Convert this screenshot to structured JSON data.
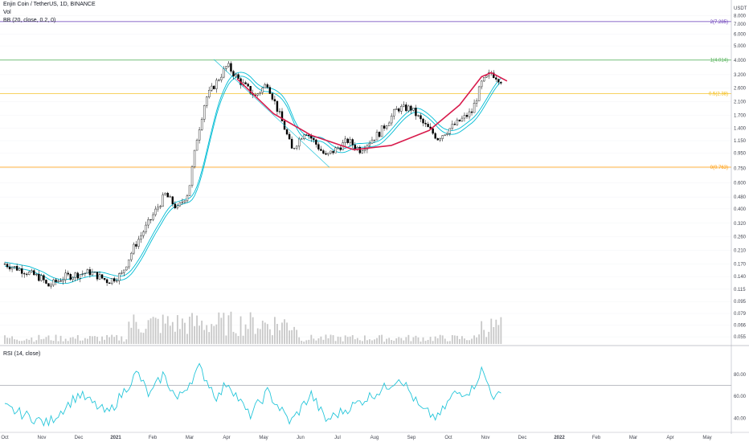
{
  "header": {
    "title": "Enjin Coin / TetherUS, 1D, BINANCE",
    "vol_label": "Vol",
    "bb_label": "BB (20, close, 0.2, 0)",
    "rsi_label": "RSI (14, close)"
  },
  "colors": {
    "candle": "#000000",
    "bb": "#00bcd4",
    "cup": "#d81b4c",
    "fib0": "#ff9800",
    "fib05": "#f2b705",
    "fib1": "#4caf50",
    "fib2": "#673ab7",
    "rsi": "#26c6da",
    "volume": "#c8c8c8",
    "grid": "#e0e3eb"
  },
  "chart_data": {
    "type": "candlestick",
    "price_axis": {
      "scale": "log",
      "unit": "USDT",
      "ticks": [
        "8.000",
        "7.000",
        "6.000",
        "5.000",
        "4.000",
        "3.200",
        "2.600",
        "2.100",
        "1.700",
        "1.400",
        "1.150",
        "0.950",
        "0.750",
        "0.600",
        "0.480",
        "0.400",
        "0.320",
        "0.260",
        "0.210",
        "0.170",
        "0.140",
        "0.115",
        "0.095",
        "0.079",
        "0.066",
        "0.055"
      ]
    },
    "time_axis": {
      "ticks": [
        "Oct",
        "Nov",
        "Dec",
        "2021",
        "Feb",
        "Mar",
        "Apr",
        "May",
        "Jun",
        "Jul",
        "Aug",
        "Sep",
        "Oct",
        "Nov",
        "Dec",
        "2022",
        "Feb",
        "Mar",
        "Apr",
        "May"
      ]
    },
    "fib_levels": [
      {
        "label": "2(7.285)",
        "value": 7.285
      },
      {
        "label": "1(4.014)",
        "value": 4.014
      },
      {
        "label": "0.5(2.38)",
        "value": 2.38
      },
      {
        "label": "0(0.763)",
        "value": 0.763
      }
    ],
    "price_points": [
      {
        "date": "2020-10-01",
        "close": 0.17
      },
      {
        "date": "2020-10-15",
        "close": 0.155
      },
      {
        "date": "2020-11-01",
        "close": 0.135
      },
      {
        "date": "2020-11-05",
        "close": 0.12
      },
      {
        "date": "2020-11-20",
        "close": 0.14
      },
      {
        "date": "2020-12-10",
        "close": 0.15
      },
      {
        "date": "2020-12-25",
        "close": 0.13
      },
      {
        "date": "2021-01-05",
        "close": 0.145
      },
      {
        "date": "2021-01-15",
        "close": 0.22
      },
      {
        "date": "2021-01-28",
        "close": 0.33
      },
      {
        "date": "2021-02-10",
        "close": 0.5
      },
      {
        "date": "2021-02-20",
        "close": 0.4
      },
      {
        "date": "2021-03-01",
        "close": 0.52
      },
      {
        "date": "2021-03-08",
        "close": 1.2
      },
      {
        "date": "2021-03-15",
        "close": 2.2
      },
      {
        "date": "2021-03-22",
        "close": 2.7
      },
      {
        "date": "2021-04-02",
        "close": 3.7
      },
      {
        "date": "2021-04-12",
        "close": 2.9
      },
      {
        "date": "2021-04-25",
        "close": 2.3
      },
      {
        "date": "2021-05-05",
        "close": 2.8
      },
      {
        "date": "2021-05-19",
        "close": 1.4
      },
      {
        "date": "2021-05-25",
        "close": 1.0
      },
      {
        "date": "2021-06-05",
        "close": 1.35
      },
      {
        "date": "2021-06-22",
        "close": 0.9
      },
      {
        "date": "2021-07-10",
        "close": 1.15
      },
      {
        "date": "2021-07-20",
        "close": 1.0
      },
      {
        "date": "2021-08-05",
        "close": 1.3
      },
      {
        "date": "2021-08-20",
        "close": 1.9
      },
      {
        "date": "2021-08-31",
        "close": 1.9
      },
      {
        "date": "2021-09-10",
        "close": 1.5
      },
      {
        "date": "2021-09-22",
        "close": 1.2
      },
      {
        "date": "2021-10-05",
        "close": 1.45
      },
      {
        "date": "2021-10-20",
        "close": 1.8
      },
      {
        "date": "2021-10-28",
        "close": 2.8
      },
      {
        "date": "2021-11-05",
        "close": 3.3
      },
      {
        "date": "2021-11-14",
        "close": 2.9
      }
    ],
    "cup_curve": [
      {
        "date": "2021-04-10",
        "value": 3.0
      },
      {
        "date": "2021-05-10",
        "value": 1.75
      },
      {
        "date": "2021-06-10",
        "value": 1.25
      },
      {
        "date": "2021-07-15",
        "value": 1.0
      },
      {
        "date": "2021-08-15",
        "value": 1.07
      },
      {
        "date": "2021-09-15",
        "value": 1.35
      },
      {
        "date": "2021-10-10",
        "value": 2.0
      },
      {
        "date": "2021-10-28",
        "value": 3.1
      },
      {
        "date": "2021-11-05",
        "value": 3.3
      },
      {
        "date": "2021-11-18",
        "value": 2.9
      }
    ],
    "rsi": {
      "ticks": [
        "80.00",
        "60.00",
        "40.00"
      ],
      "reference_level": 70,
      "points": [
        {
          "date": "2020-10-01",
          "value": 50
        },
        {
          "date": "2020-11-05",
          "value": 35
        },
        {
          "date": "2020-12-01",
          "value": 62
        },
        {
          "date": "2020-12-25",
          "value": 44
        },
        {
          "date": "2021-01-18",
          "value": 82
        },
        {
          "date": "2021-01-28",
          "value": 60
        },
        {
          "date": "2021-02-08",
          "value": 80
        },
        {
          "date": "2021-02-20",
          "value": 57
        },
        {
          "date": "2021-03-10",
          "value": 86
        },
        {
          "date": "2021-03-25",
          "value": 58
        },
        {
          "date": "2021-04-02",
          "value": 74
        },
        {
          "date": "2021-04-20",
          "value": 42
        },
        {
          "date": "2021-05-05",
          "value": 64
        },
        {
          "date": "2021-05-24",
          "value": 36
        },
        {
          "date": "2021-06-10",
          "value": 62
        },
        {
          "date": "2021-06-22",
          "value": 38
        },
        {
          "date": "2021-07-20",
          "value": 55
        },
        {
          "date": "2021-08-10",
          "value": 68
        },
        {
          "date": "2021-08-22",
          "value": 78
        },
        {
          "date": "2021-09-08",
          "value": 48
        },
        {
          "date": "2021-09-22",
          "value": 40
        },
        {
          "date": "2021-10-05",
          "value": 62
        },
        {
          "date": "2021-10-20",
          "value": 66
        },
        {
          "date": "2021-10-28",
          "value": 84
        },
        {
          "date": "2021-11-08",
          "value": 58
        },
        {
          "date": "2021-11-14",
          "value": 62
        }
      ]
    }
  }
}
